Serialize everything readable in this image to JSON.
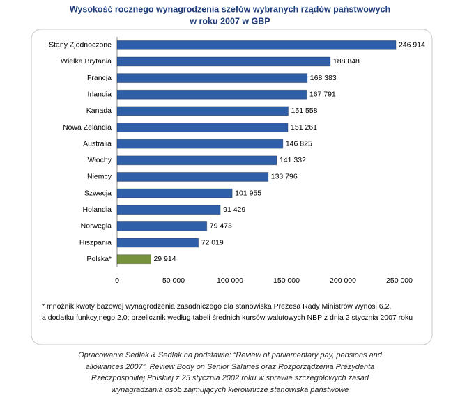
{
  "chart_data": {
    "type": "hbar",
    "title": [
      "Wysokość rocznego wynagrodzenia szefów wybranych rządów państwowych",
      "w roku 2007 w GBP"
    ],
    "categories": [
      "Stany Zjednoczone",
      "Wielka Brytania",
      "Francja",
      "Irlandia",
      "Kanada",
      "Nowa Zelandia",
      "Australia",
      "Włochy",
      "Niemcy",
      "Szwecja",
      "Holandia",
      "Norwegia",
      "Hiszpania",
      "Polska*"
    ],
    "values": [
      246914,
      188848,
      168383,
      167791,
      151558,
      151261,
      146825,
      141332,
      133796,
      101955,
      91429,
      79473,
      72019,
      29914
    ],
    "value_labels": [
      "246 914",
      "188 848",
      "168 383",
      "167 791",
      "151 558",
      "151 261",
      "146 825",
      "141 332",
      "133 796",
      "101 955",
      "91 429",
      "79 473",
      "72 019",
      "29 914"
    ],
    "colors": [
      "#2f5fa9",
      "#2f5fa9",
      "#2f5fa9",
      "#2f5fa9",
      "#2f5fa9",
      "#2f5fa9",
      "#2f5fa9",
      "#2f5fa9",
      "#2f5fa9",
      "#2f5fa9",
      "#2f5fa9",
      "#2f5fa9",
      "#2f5fa9",
      "#76923c"
    ],
    "xlim": [
      0,
      250000
    ],
    "xticks": [
      0,
      {
        "value": 50000,
        "label": "50 000"
      },
      {
        "value": 100000,
        "label": "100 000"
      },
      {
        "value": 150000,
        "label": "150 000"
      },
      {
        "value": 200000,
        "label": "200 000"
      },
      {
        "value": 250000,
        "label": "250 000"
      }
    ],
    "grid": false,
    "note": [
      "* mnożnik kwoty bazowej wynagrodzenia zasadniczego dla stanowiska Prezesa Rady Ministrów wynosi 6,2,",
      "a dodatku funkcyjnego 2,0;  przelicznik według tabeli średnich kursów walutowych NBP z dnia 2 stycznia 2007 roku"
    ],
    "source": [
      "Opracowanie Sedlak & Sedlak na podstawie: “Review of parliamentary pay, pensions and",
      "allowances 2007”, Review Body on Senior Salaries oraz Rozporządzenia Prezydenta",
      "Rzeczpospolitej Polskiej z 25 stycznia 2002 roku w sprawie szczegółowych zasad",
      "wynagradzania osób zajmujących kierownicze stanowiska państwowe"
    ]
  }
}
